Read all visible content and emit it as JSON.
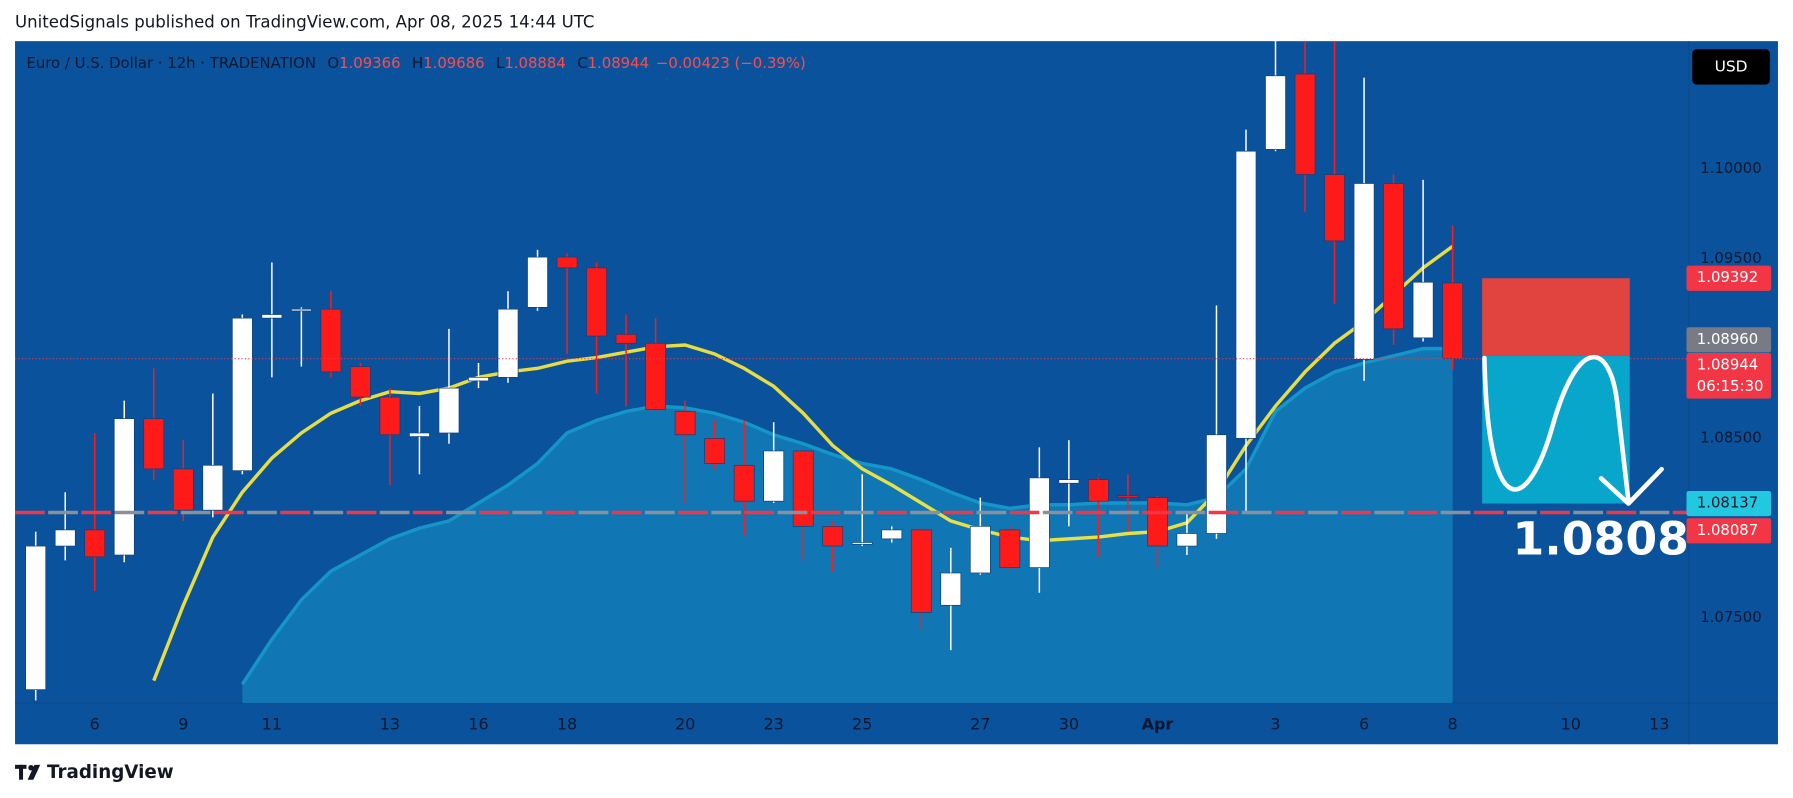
{
  "header": {
    "text": "UnitedSignals published on TradingView.com, Apr 08, 2025 14:44 UTC"
  },
  "footer": {
    "brand": "TradingView"
  },
  "currency_button": "USD",
  "chart_data": {
    "type": "candlestick",
    "legend": {
      "symbol": "Euro / U.S. Dollar · 12h · TRADENATION",
      "fields": [
        {
          "key": "O",
          "value": "1.09366"
        },
        {
          "key": "H",
          "value": "1.09686"
        },
        {
          "key": "L",
          "value": "1.08884"
        },
        {
          "key": "C",
          "value": "1.08944"
        }
      ],
      "change": "−0.00423 (−0.39%)"
    },
    "x": [
      0,
      1,
      2,
      3,
      4,
      5,
      6,
      7,
      8,
      9,
      10,
      11,
      12,
      13,
      14,
      15,
      16,
      17,
      18,
      19,
      20,
      21,
      22,
      23,
      24,
      25,
      26,
      27,
      28,
      29,
      30,
      31,
      32,
      33,
      34,
      35,
      36,
      37,
      38,
      39,
      40,
      41,
      42,
      43,
      44,
      45,
      46,
      47,
      48
    ],
    "open": [
      1.071,
      1.079,
      1.0799,
      1.0785,
      1.0861,
      1.0833,
      1.081,
      1.0832,
      1.0917,
      1.0921,
      1.0922,
      1.089,
      1.0873,
      1.0851,
      1.0853,
      1.0882,
      1.0884,
      1.0923,
      1.0951,
      1.0945,
      1.0908,
      1.0903,
      1.0865,
      1.085,
      1.0835,
      1.0815,
      1.0843,
      1.0801,
      1.0791,
      1.0794,
      1.0799,
      1.0757,
      1.0775,
      1.0799,
      1.0778,
      1.0825,
      1.0827,
      1.0818,
      1.0817,
      1.079,
      1.0797,
      1.085,
      1.1011,
      1.1053,
      1.0997,
      1.0894,
      1.0992,
      1.0906,
      1.09366
    ],
    "high": [
      1.0798,
      1.082,
      1.0853,
      1.0871,
      1.0889,
      1.0849,
      1.0875,
      1.0919,
      1.0948,
      1.0923,
      1.0932,
      1.0892,
      1.0878,
      1.0868,
      1.0911,
      1.0892,
      1.0932,
      1.0955,
      1.0953,
      1.0948,
      1.0919,
      1.0917,
      1.0871,
      1.086,
      1.086,
      1.0859,
      1.0844,
      1.0804,
      1.083,
      1.0801,
      1.08,
      1.0789,
      1.0817,
      1.0801,
      1.0845,
      1.0849,
      1.0828,
      1.083,
      1.0818,
      1.0808,
      1.0924,
      1.1022,
      1.108,
      1.108,
      1.1075,
      1.1051,
      1.0997,
      1.0994,
      1.09686
    ],
    "low": [
      1.0704,
      1.0782,
      1.0765,
      1.0781,
      1.0827,
      1.0804,
      1.0806,
      1.083,
      1.0884,
      1.089,
      1.0884,
      1.0868,
      1.0824,
      1.083,
      1.0847,
      1.0878,
      1.0881,
      1.0921,
      1.0897,
      1.0875,
      1.0868,
      1.0865,
      1.0814,
      1.0833,
      1.0796,
      1.0814,
      1.0782,
      1.0776,
      1.079,
      1.0792,
      1.0744,
      1.0732,
      1.0774,
      1.0777,
      1.0764,
      1.0801,
      1.0784,
      1.0798,
      1.0778,
      1.0785,
      1.0794,
      1.0808,
      1.101,
      1.0976,
      1.0925,
      1.0882,
      1.0902,
      1.0904,
      1.08884
    ],
    "close": [
      1.079,
      1.0799,
      1.0784,
      1.0861,
      1.0833,
      1.081,
      1.0835,
      1.0917,
      1.0919,
      1.0922,
      1.0887,
      1.0873,
      1.0852,
      1.0853,
      1.0878,
      1.0884,
      1.0922,
      1.0951,
      1.0945,
      1.0907,
      1.0903,
      1.0866,
      1.0852,
      1.0836,
      1.0815,
      1.0843,
      1.0801,
      1.079,
      1.0792,
      1.0799,
      1.0753,
      1.0775,
      1.0801,
      1.0778,
      1.0828,
      1.0827,
      1.0815,
      1.0817,
      1.079,
      1.0797,
      1.0852,
      1.101,
      1.1052,
      1.0997,
      1.096,
      1.0992,
      1.0911,
      1.0937,
      1.08944
    ],
    "up_color": "#ffffff",
    "down_color": "#ff1a1a",
    "ma_fast": {
      "color": "#ffeb3b",
      "values": [
        null,
        null,
        null,
        null,
        1.0715,
        1.0757,
        1.0795,
        1.082,
        1.0839,
        1.0853,
        1.0864,
        1.0871,
        1.0876,
        1.0875,
        1.0878,
        1.0884,
        1.0887,
        1.0889,
        1.0893,
        1.0895,
        1.0898,
        1.0901,
        1.0902,
        1.0897,
        1.0889,
        1.0879,
        1.0864,
        1.0846,
        1.0833,
        1.0824,
        1.0814,
        1.0804,
        1.0799,
        1.0795,
        1.0793,
        1.0794,
        1.0795,
        1.0797,
        1.0798,
        1.0803,
        1.082,
        1.0846,
        1.0868,
        1.0887,
        1.0903,
        1.0915,
        1.093,
        1.0945,
        1.0957
      ]
    },
    "ma_slow": {
      "color": "#1596c8",
      "values": [
        null,
        null,
        null,
        null,
        null,
        null,
        null,
        1.0713,
        1.0738,
        1.076,
        1.0776,
        1.0785,
        1.0794,
        1.08,
        1.0804,
        1.0814,
        1.0824,
        1.0836,
        1.0853,
        1.086,
        1.0865,
        1.0868,
        1.0867,
        1.0864,
        1.0859,
        1.0852,
        1.0847,
        1.0841,
        1.0836,
        1.0833,
        1.0827,
        1.082,
        1.0814,
        1.0811,
        1.0813,
        1.0813,
        1.0814,
        1.0814,
        1.0814,
        1.0813,
        1.0817,
        1.0833,
        1.0865,
        1.0878,
        1.0887,
        1.0892,
        1.0896,
        1.09,
        1.09
      ]
    },
    "xlim": [
      -0.7,
      56
    ],
    "xticks": [
      {
        "value": 2,
        "label": "6"
      },
      {
        "value": 5,
        "label": "9"
      },
      {
        "value": 8,
        "label": "11"
      },
      {
        "value": 12,
        "label": "13"
      },
      {
        "value": 15,
        "label": "16"
      },
      18,
      {
        "value": 22,
        "label": "20"
      },
      {
        "value": 25,
        "label": "23"
      },
      {
        "value": 28,
        "label": "25"
      },
      {
        "value": 32,
        "label": "27"
      },
      {
        "value": 35,
        "label": "30"
      },
      {
        "value": 38,
        "label": "Apr"
      },
      {
        "value": 42,
        "label": "3"
      },
      {
        "value": 45,
        "label": "6"
      },
      {
        "value": 48,
        "label": "8"
      },
      {
        "value": 52,
        "label": "10"
      },
      {
        "value": 55,
        "label": "13"
      }
    ],
    "ylim": [
      1.07025,
      1.10713
    ],
    "yticks": [
      {
        "value": 1.075,
        "label": "1.07500"
      },
      {
        "value": 1.085,
        "label": "1.08500"
      },
      {
        "value": 1.095,
        "label": "1.09500"
      },
      {
        "value": 1.1,
        "label": "1.10000"
      }
    ],
    "grid": false,
    "price_labels": [
      {
        "value": 1.09392,
        "label": "1.09392",
        "color": "#f23645"
      },
      {
        "value": 1.0896,
        "label": "1.08960",
        "color": "#787b86"
      },
      {
        "value": 1.08944,
        "label": "1.08944",
        "color": "#f23645",
        "countdown": "06:15:30"
      },
      {
        "value": 1.08137,
        "label": "1.08137",
        "color": "#22c7e0"
      },
      {
        "value": 1.08087,
        "label": "1.08087",
        "color": "#f23645"
      }
    ],
    "annotation": "1.0808"
  }
}
